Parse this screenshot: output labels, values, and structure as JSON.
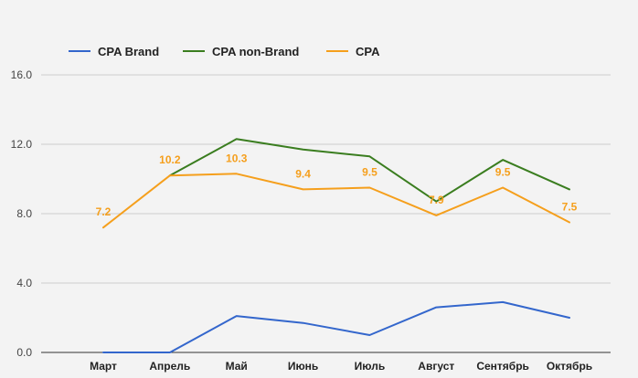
{
  "chart_data": {
    "type": "line",
    "title": "",
    "xlabel": "",
    "ylabel": "",
    "categories": [
      "Март",
      "Апрель",
      "Май",
      "Июнь",
      "Июль",
      "Август",
      "Сентябрь",
      "Октябрь"
    ],
    "ylim": [
      0,
      16
    ],
    "yticks": [
      "0.0",
      "4.0",
      "8.0",
      "12.0",
      "16.0"
    ],
    "grid": true,
    "legend_position": "top-left",
    "series": [
      {
        "name": "CPA Brand",
        "color": "#3366cc",
        "values": [
          0,
          0,
          2.1,
          1.7,
          1.0,
          2.6,
          2.9,
          2.0
        ],
        "labels": []
      },
      {
        "name": "CPA non-Brand",
        "color": "#3a7d1f",
        "values": [
          null,
          10.2,
          12.3,
          11.7,
          11.3,
          8.7,
          11.1,
          9.4
        ],
        "labels": []
      },
      {
        "name": "CPA",
        "color": "#f59f1c",
        "values": [
          7.2,
          10.2,
          10.3,
          9.4,
          9.5,
          7.9,
          9.5,
          7.5
        ],
        "labels": [
          "7.2",
          "10.2",
          "10.3",
          "9.4",
          "9.5",
          "7.9",
          "9.5",
          "7.5"
        ]
      }
    ]
  }
}
